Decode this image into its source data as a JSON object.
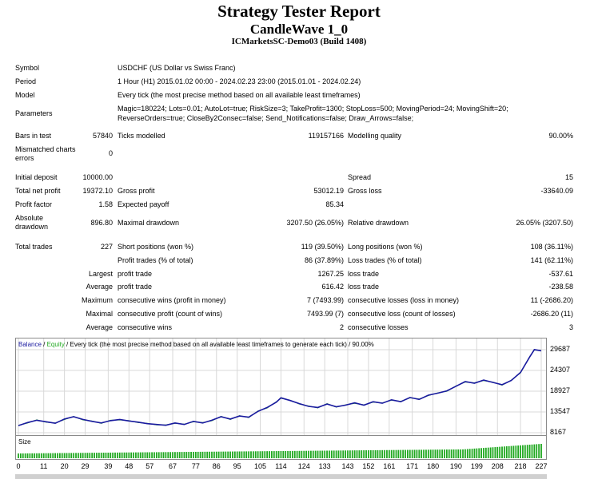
{
  "header": {
    "title": "Strategy Tester Report",
    "subtitle": "CandleWave 1_0",
    "build": "ICMarketsSC-Demo03 (Build 1408)"
  },
  "info": {
    "symbol_label": "Symbol",
    "symbol_value": "USDCHF (US Dollar vs Swiss Franc)",
    "period_label": "Period",
    "period_value": "1 Hour (H1) 2015.01.02 00:00 - 2024.02.23 23:00 (2015.01.01 - 2024.02.24)",
    "model_label": "Model",
    "model_value": "Every tick (the most precise method based on all available least timeframes)",
    "parameters_label": "Parameters",
    "parameters_line1": "Magic=180224; Lots=0.01; AutoLot=true; RiskSize=3; TakeProfit=1300; StopLoss=500; MovingPeriod=24; MovingShift=20;",
    "parameters_line2": "ReverseOrders=true; CloseBy2Consec=false; Send_Notifications=false; Draw_Arrows=false;"
  },
  "stats": {
    "bars_label": "Bars in test",
    "bars_value": "57840",
    "ticks_label": "Ticks modelled",
    "ticks_value": "119157166",
    "quality_label": "Modelling quality",
    "quality_value": "90.00%",
    "mismatch_label1": "Mismatched charts",
    "mismatch_label2": "errors",
    "mismatch_value": "0",
    "deposit_label": "Initial deposit",
    "deposit_value": "10000.00",
    "spread_label": "Spread",
    "spread_value": "15",
    "netprofit_label": "Total net profit",
    "netprofit_value": "19372.10",
    "grossprofit_label": "Gross profit",
    "grossprofit_value": "53012.19",
    "grossloss_label": "Gross loss",
    "grossloss_value": "-33640.09",
    "pf_label": "Profit factor",
    "pf_value": "1.58",
    "payoff_label": "Expected payoff",
    "payoff_value": "85.34",
    "absdd_label1": "Absolute",
    "absdd_label2": "drawdown",
    "absdd_value": "896.80",
    "maxdd_label": "Maximal drawdown",
    "maxdd_value": "3207.50 (26.05%)",
    "reldd_label": "Relative drawdown",
    "reldd_value": "26.05% (3207.50)",
    "trades_label": "Total trades",
    "trades_value": "227",
    "short_label": "Short positions (won %)",
    "short_value": "119 (39.50%)",
    "long_label": "Long positions (won %)",
    "long_value": "108 (36.11%)",
    "ptrades_label": "Profit trades (% of total)",
    "ptrades_value": "86 (37.89%)",
    "ltrades_label": "Loss trades (% of total)",
    "ltrades_value": "141 (62.11%)",
    "largest_label": "Largest",
    "largest_p_label": "profit trade",
    "largest_p_value": "1267.25",
    "largest_l_label": "loss trade",
    "largest_l_value": "-537.61",
    "average_label": "Average",
    "average_p_label": "profit trade",
    "average_p_value": "616.42",
    "average_l_label": "loss trade",
    "average_l_value": "-238.58",
    "maximum_label": "Maximum",
    "maxwins_label": "consecutive wins (profit in money)",
    "maxwins_value": "7 (7493.99)",
    "maxloss_label": "consecutive losses (loss in money)",
    "maxloss_value": "11 (-2686.20)",
    "maximal_label": "Maximal",
    "maxprofit_label": "consecutive profit (count of wins)",
    "maxprofit_value": "7493.99 (7)",
    "maxlosscnt_label": "consecutive loss (count of losses)",
    "maxlosscnt_value": "-2686.20 (11)",
    "avg2_label": "Average",
    "avgwins_label": "consecutive wins",
    "avgwins_value": "2",
    "avglosses_label": "consecutive losses",
    "avglosses_value": "3"
  },
  "chart_data": {
    "type": "line",
    "legend_balance": "Balance",
    "legend_sep": " / ",
    "legend_equity": "Equity",
    "legend_rest": " / Every tick (the most precise method based on all available least timeframes to generate each tick) / 90.00%",
    "size_label": "Size",
    "balance_color": "#1a1aa0",
    "equity_color": "#1fa81f",
    "ylim": [
      8167,
      29687
    ],
    "xlim": [
      0,
      227
    ],
    "y_ticks": [
      "29687",
      "24307",
      "18927",
      "13547",
      "8167"
    ],
    "x_ticks": [
      "0",
      "11",
      "20",
      "29",
      "39",
      "48",
      "57",
      "67",
      "77",
      "86",
      "95",
      "105",
      "114",
      "124",
      "133",
      "143",
      "152",
      "161",
      "171",
      "180",
      "190",
      "199",
      "208",
      "218",
      "227"
    ],
    "balance": [
      [
        0,
        10000
      ],
      [
        4,
        10800
      ],
      [
        8,
        11400
      ],
      [
        12,
        11000
      ],
      [
        16,
        10600
      ],
      [
        20,
        11700
      ],
      [
        24,
        12300
      ],
      [
        28,
        11600
      ],
      [
        32,
        11100
      ],
      [
        36,
        10700
      ],
      [
        40,
        11300
      ],
      [
        44,
        11600
      ],
      [
        48,
        11200
      ],
      [
        52,
        10900
      ],
      [
        56,
        10500
      ],
      [
        60,
        10300
      ],
      [
        64,
        10100
      ],
      [
        68,
        10700
      ],
      [
        72,
        10300
      ],
      [
        76,
        11100
      ],
      [
        80,
        10700
      ],
      [
        84,
        11400
      ],
      [
        88,
        12300
      ],
      [
        92,
        11700
      ],
      [
        96,
        12500
      ],
      [
        100,
        12200
      ],
      [
        104,
        13700
      ],
      [
        108,
        14700
      ],
      [
        112,
        16100
      ],
      [
        114,
        17200
      ],
      [
        118,
        16500
      ],
      [
        122,
        15700
      ],
      [
        126,
        15000
      ],
      [
        130,
        14700
      ],
      [
        134,
        15600
      ],
      [
        138,
        14900
      ],
      [
        142,
        15300
      ],
      [
        146,
        15900
      ],
      [
        150,
        15300
      ],
      [
        154,
        16200
      ],
      [
        158,
        15800
      ],
      [
        162,
        16700
      ],
      [
        166,
        16200
      ],
      [
        170,
        17300
      ],
      [
        174,
        16800
      ],
      [
        178,
        17900
      ],
      [
        182,
        18400
      ],
      [
        186,
        19000
      ],
      [
        190,
        20200
      ],
      [
        194,
        21400
      ],
      [
        198,
        21000
      ],
      [
        202,
        21800
      ],
      [
        206,
        21200
      ],
      [
        210,
        20600
      ],
      [
        214,
        21700
      ],
      [
        218,
        23800
      ],
      [
        222,
        27800
      ],
      [
        224,
        29700
      ],
      [
        227,
        29400
      ]
    ]
  }
}
